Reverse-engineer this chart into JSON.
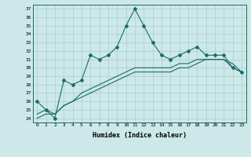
{
  "x": [
    0,
    1,
    2,
    3,
    4,
    5,
    6,
    7,
    8,
    9,
    10,
    11,
    12,
    13,
    14,
    15,
    16,
    17,
    18,
    19,
    20,
    21,
    22,
    23
  ],
  "line1": [
    26,
    25,
    24,
    28.5,
    28,
    28.5,
    31.5,
    31,
    31.5,
    32.5,
    35,
    37,
    35,
    33,
    31.5,
    31,
    31.5,
    32,
    32.5,
    31.5,
    31.5,
    31.5,
    30,
    29.5
  ],
  "line2": [
    24.5,
    25,
    24.5,
    25.5,
    26,
    26.5,
    27,
    27.5,
    28,
    28.5,
    29,
    29.5,
    29.5,
    29.5,
    29.5,
    29.5,
    30,
    30,
    30.5,
    31,
    31,
    31,
    30,
    29.5
  ],
  "line3": [
    24,
    24.5,
    24.5,
    25.5,
    26,
    27,
    27.5,
    28,
    28.5,
    29,
    29.5,
    30,
    30,
    30,
    30,
    30,
    30.5,
    30.5,
    31,
    31,
    31,
    31,
    30.5,
    29.5
  ],
  "ylim": [
    23.5,
    37.5
  ],
  "yticks": [
    24,
    25,
    26,
    27,
    28,
    29,
    30,
    31,
    32,
    33,
    34,
    35,
    36,
    37
  ],
  "xticks": [
    0,
    1,
    2,
    3,
    4,
    5,
    6,
    7,
    8,
    9,
    10,
    11,
    12,
    13,
    14,
    15,
    16,
    17,
    18,
    19,
    20,
    21,
    22,
    23
  ],
  "xlabel": "Humidex (Indice chaleur)",
  "line_color": "#1a6b6b",
  "bg_color": "#cce8e8",
  "grid_color": "#aacccc",
  "marker_size": 2.0
}
